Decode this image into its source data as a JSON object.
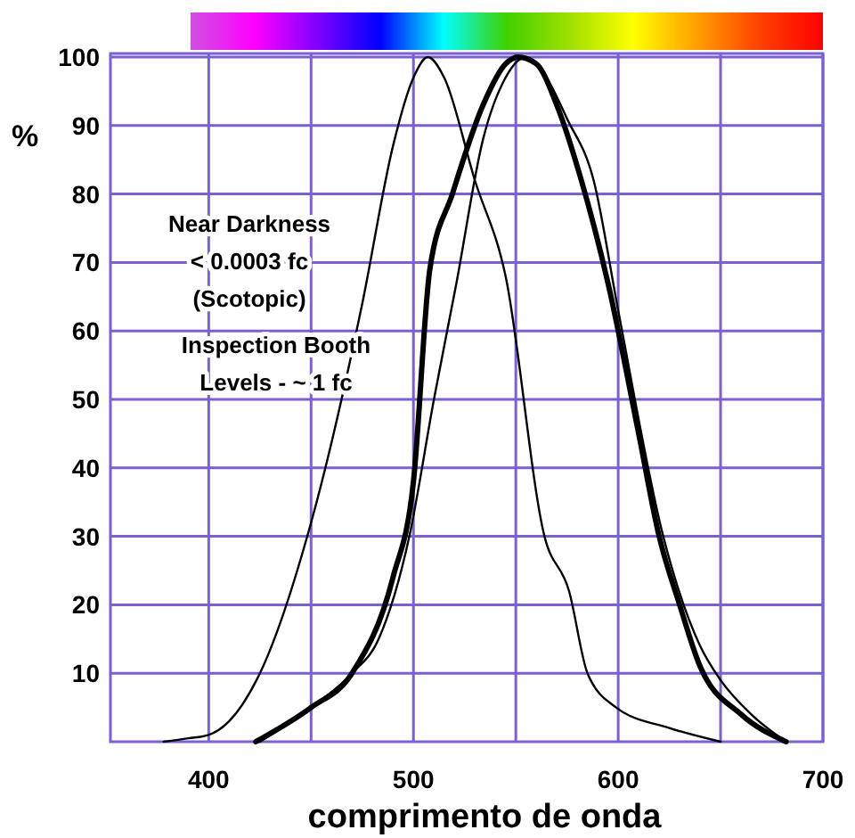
{
  "chart_data": {
    "type": "line",
    "xlabel": "comprimento de onda",
    "ylabel": "%",
    "xlim": [
      352,
      700
    ],
    "ylim": [
      0,
      100
    ],
    "xticks": [
      400,
      {
        "value": 450,
        "label": null
      },
      500,
      {
        "value": 550,
        "label": null
      },
      600,
      {
        "value": 650,
        "label": null
      },
      700
    ],
    "yticks": [
      10,
      20,
      30,
      40,
      50,
      60,
      70,
      80,
      90,
      100
    ],
    "grid": true,
    "marker": "none",
    "line_style": "solid",
    "annotations": [
      "Near Darkness\n< 0.0003 fc\n(Scotopic)",
      "Inspection Booth\nLevels - ~ 1 fc"
    ],
    "series": [
      {
        "color": "#000000",
        "x": [
          378,
          390,
          400,
          410,
          425,
          450,
          475,
          490,
          500,
          507,
          515,
          530,
          545,
          564,
          576,
          585,
          599,
          625,
          650
        ],
        "values": [
          0,
          0.5,
          1,
          3,
          10,
          32,
          64,
          87,
          97,
          100,
          97,
          82,
          68,
          30,
          22,
          10,
          5,
          2,
          0
        ]
      },
      {
        "color": "#000000",
        "x": [
          425,
          450,
          470,
          483,
          498,
          510,
          521,
          534,
          545,
          555,
          565,
          575,
          588,
          600,
          622,
          640,
          650,
          665,
          682
        ],
        "values": [
          0,
          5,
          10,
          15,
          30,
          50,
          67,
          88,
          97,
          100,
          97,
          91,
          82,
          63,
          30,
          14,
          9,
          4,
          0
        ]
      },
      {
        "color": "#000000",
        "x": [
          423,
          450,
          470,
          490,
          500,
          508,
          519,
          534,
          545,
          551,
          560,
          570,
          582,
          595,
          610,
          620,
          630,
          640,
          660,
          682
        ],
        "values": [
          0,
          5,
          10,
          24,
          38,
          69,
          80,
          93,
          99,
          100,
          99,
          93,
          82,
          67,
          45,
          30,
          20,
          11,
          4,
          0
        ]
      }
    ]
  }
}
